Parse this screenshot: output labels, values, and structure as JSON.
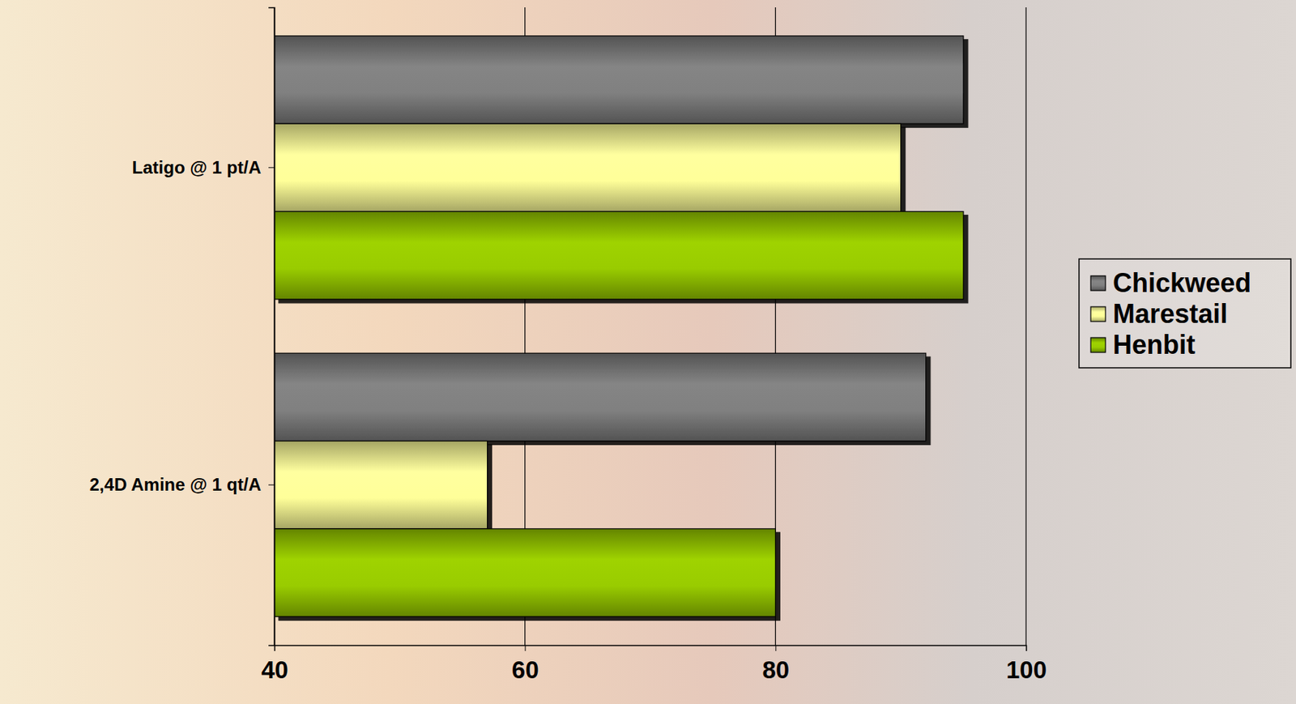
{
  "chart_data": {
    "type": "bar",
    "orientation": "horizontal",
    "categories": [
      "Latigo @ 1 pt/A",
      "2,4D Amine @ 1 qt/A"
    ],
    "series": [
      {
        "name": "Chickweed",
        "color": "#808080",
        "values": [
          95,
          92
        ]
      },
      {
        "name": "Marestail",
        "color": "#ffff99",
        "values": [
          90,
          57
        ]
      },
      {
        "name": "Henbit",
        "color": "#99cc00",
        "values": [
          95,
          80
        ]
      }
    ],
    "xlim": [
      40,
      100
    ],
    "xticks": [
      40,
      60,
      80,
      100
    ],
    "grid": true,
    "legend": "right"
  }
}
